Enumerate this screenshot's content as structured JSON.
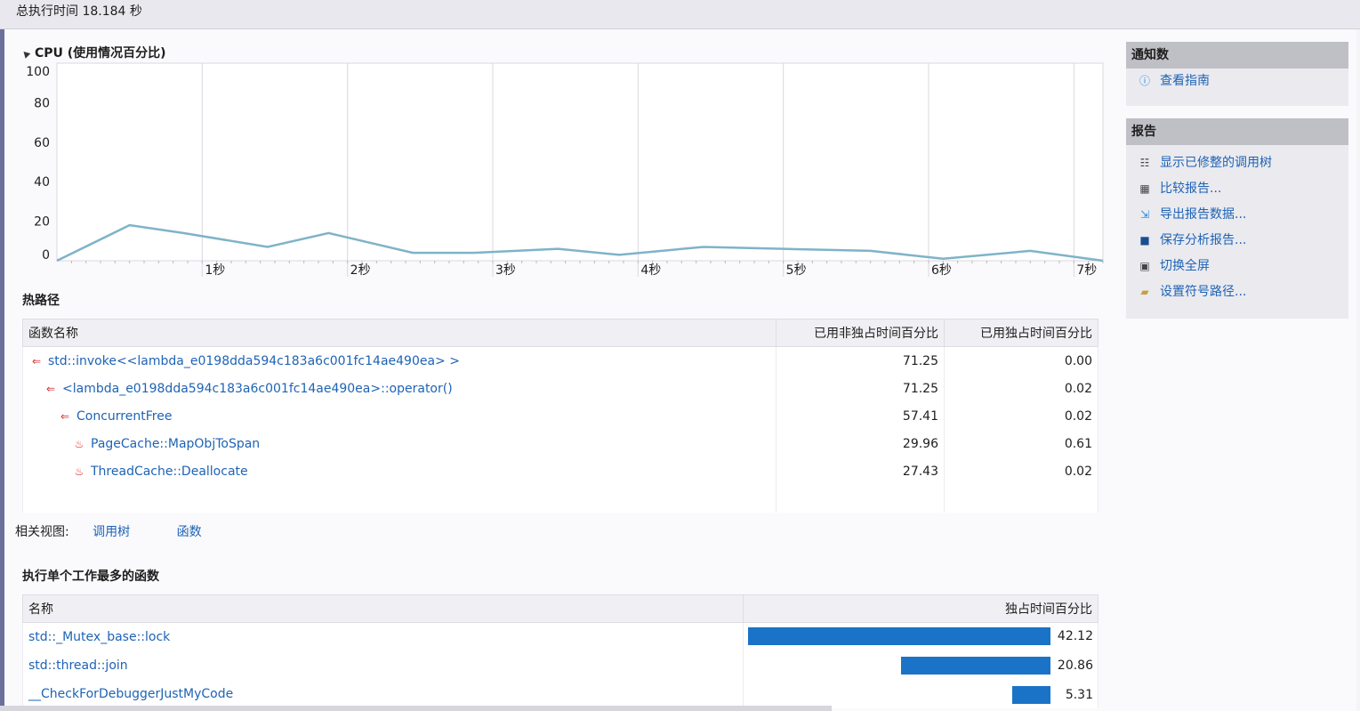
{
  "header": {
    "execution_time": "总执行时间 18.184 秒"
  },
  "cpu_section": {
    "title": "CPU (使用情况百分比)",
    "chart_data": {
      "type": "line",
      "title": "CPU (使用情况百分比)",
      "x": [
        0,
        0.5,
        0.87,
        1.45,
        1.87,
        2.45,
        2.87,
        3.45,
        3.87,
        4.45,
        5.0,
        5.6,
        6.1,
        6.7,
        7.2
      ],
      "values": [
        0,
        18,
        14,
        7,
        14,
        4,
        4,
        6,
        3,
        7,
        6,
        5,
        1,
        5,
        0
      ],
      "xlim": [
        0,
        7.2
      ],
      "ylim": [
        0,
        100
      ],
      "y_ticks": [
        "100",
        "80",
        "60",
        "40",
        "20",
        "0"
      ],
      "x_ticks": [
        "1秒",
        "2秒",
        "3秒",
        "4秒",
        "5秒",
        "6秒",
        "7秒"
      ],
      "grid": true,
      "line_color": "#7fb3c8"
    }
  },
  "hot_path": {
    "title": "热路径",
    "columns": [
      "函数名称",
      "已用非独占时间百分比",
      "已用独占时间百分比"
    ],
    "rows": [
      {
        "name": "std::invoke<<lambda_e0198dda594c183a6c001fc14ae490ea> >",
        "inclusive": "71.25",
        "exclusive": "0.00",
        "icon": "hot-path-icon"
      },
      {
        "name": "<lambda_e0198dda594c183a6c001fc14ae490ea>::operator()",
        "inclusive": "71.25",
        "exclusive": "0.02",
        "icon": "hot-path-icon"
      },
      {
        "name": "ConcurrentFree",
        "inclusive": "57.41",
        "exclusive": "0.02",
        "icon": "hot-path-icon"
      },
      {
        "name": "PageCache::MapObjToSpan",
        "inclusive": "29.96",
        "exclusive": "0.61",
        "icon": "flame-icon"
      },
      {
        "name": "ThreadCache::Deallocate",
        "inclusive": "27.43",
        "exclusive": "0.02",
        "icon": "flame-icon"
      }
    ]
  },
  "related_views": {
    "label": "相关视图:",
    "call_tree": "调用树",
    "functions": "函数"
  },
  "top_functions": {
    "title": "执行单个工作最多的函数",
    "columns": [
      "名称",
      "独占时间百分比"
    ],
    "rows": [
      {
        "name": "std::_Mutex_base::lock",
        "value": 42.12,
        "label": "42.12"
      },
      {
        "name": "std::thread::join",
        "value": 20.86,
        "label": "20.86"
      },
      {
        "name": "__CheckForDebuggerJustMyCode",
        "value": 5.31,
        "label": "5.31"
      }
    ],
    "bar_color": "#1a73c7"
  },
  "sidebar": {
    "notifications": {
      "title": "通知数",
      "items": [
        {
          "label": "查看指南",
          "icon": "info-icon"
        }
      ]
    },
    "reports": {
      "title": "报告",
      "items": [
        {
          "label": "显示已修整的调用树",
          "icon": "tree-icon"
        },
        {
          "label": "比较报告...",
          "icon": "compare-icon"
        },
        {
          "label": "导出报告数据...",
          "icon": "export-icon"
        },
        {
          "label": "保存分析报告...",
          "icon": "save-icon"
        },
        {
          "label": "切换全屏",
          "icon": "fullscreen-icon"
        },
        {
          "label": "设置符号路径...",
          "icon": "folder-icon"
        }
      ]
    }
  }
}
